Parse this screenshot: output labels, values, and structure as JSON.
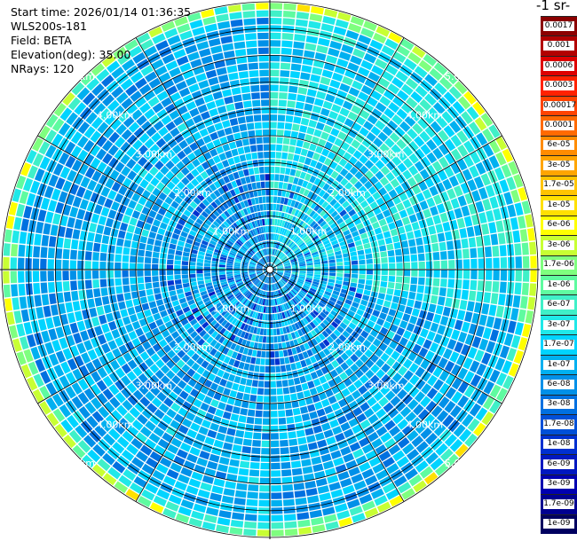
{
  "info": {
    "start_time": "Start time: 2026/01/14 01:36:35",
    "site": "WLS200s-181",
    "field": "Field: BETA",
    "elevation": "Elevation(deg): 35.00",
    "nrays": "NRays: 120"
  },
  "colorbar": {
    "title": "-1 sr-",
    "labels": [
      "0.0017",
      "0.001",
      "0.0006",
      "0.0003",
      "0.00017",
      "0.0001",
      "6e-05",
      "3e-05",
      "1.7e-05",
      "1e-05",
      "6e-06",
      "3e-06",
      "1.7e-06",
      "1e-06",
      "6e-07",
      "3e-07",
      "1.7e-07",
      "1e-07",
      "6e-08",
      "3e-08",
      "1.7e-08",
      "1e-08",
      "6e-09",
      "3e-09",
      "1.7e-09",
      "1e-09"
    ],
    "colors": [
      "#8b0000",
      "#b20000",
      "#dd0000",
      "#ff2200",
      "#ff4400",
      "#ff6a00",
      "#ff8c00",
      "#ffa500",
      "#ffc400",
      "#ffe000",
      "#ffff00",
      "#c8ff33",
      "#7fff7f",
      "#5ffba0",
      "#40f0c8",
      "#20e8e8",
      "#00d4ff",
      "#00b0f0",
      "#0090e8",
      "#0070e0",
      "#0050d8",
      "#0030d0",
      "#0018c0",
      "#0000b0",
      "#000090",
      "#000060"
    ]
  },
  "chart_data": {
    "type": "heatmap",
    "projection": "polar PPI",
    "field": "BETA",
    "elevation_deg": 35.0,
    "nrays": 120,
    "range_rings_km": [
      1,
      2,
      3,
      4,
      5
    ],
    "ring_labels": [
      "1.00km",
      "2.00km",
      "3.00km",
      "4.00km",
      "5.00km"
    ],
    "max_range_km": 5.0,
    "color_scale": "log",
    "value_range": [
      1e-09,
      0.0017
    ],
    "typical_value": 1e-07,
    "edge_value": 3e-05
  }
}
